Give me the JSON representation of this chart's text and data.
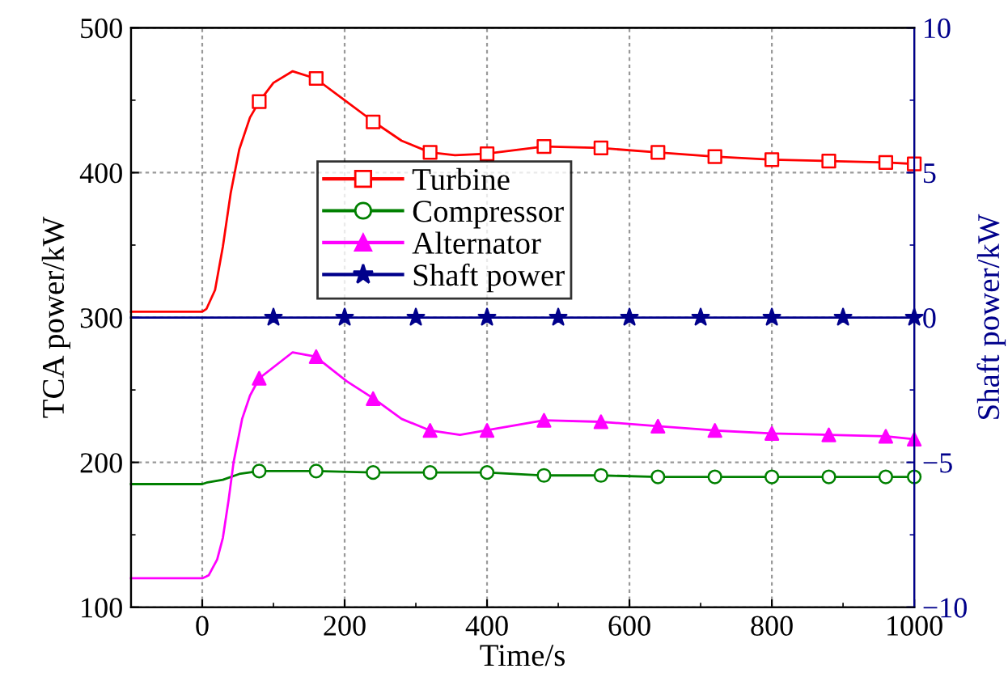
{
  "chart_data": {
    "type": "line",
    "xlabel": "Time/s",
    "ylabel": "TCA power/kW",
    "y2label": "Shaft power/kW",
    "xlim": [
      -100,
      1000
    ],
    "xticks": [
      0,
      {
        "value": 100,
        "label": null
      },
      200,
      {
        "value": 300,
        "label": null
      },
      400,
      {
        "value": 500,
        "label": null
      },
      600,
      {
        "value": 700,
        "label": null
      },
      800,
      {
        "value": 900,
        "label": null
      },
      1000
    ],
    "ylim": [
      100,
      500
    ],
    "yticks": [
      100,
      {
        "value": 150,
        "label": null
      },
      200,
      {
        "value": 250,
        "label": null
      },
      300,
      {
        "value": 350,
        "label": null
      },
      400,
      {
        "value": 450,
        "label": null
      },
      500
    ],
    "y2lim": [
      -10,
      10
    ],
    "y2ticks": [
      {
        "value": -10,
        "label": "−10"
      },
      {
        "value": -7.5,
        "label": null
      },
      {
        "value": -5,
        "label": "−5"
      },
      {
        "value": -2.5,
        "label": null
      },
      0,
      {
        "value": 2.5,
        "label": null
      },
      5,
      {
        "value": 7.5,
        "label": null
      },
      10
    ],
    "grid": true,
    "legend": "top",
    "line_style": "solid",
    "series": [
      {
        "marker": "none",
        "color": "#ff0000",
        "x": [
          -100,
          0,
          6,
          18,
          29,
          40,
          52,
          67,
          80,
          100,
          127,
          159,
          200,
          241,
          280,
          320,
          355,
          398,
          480,
          559,
          639,
          720,
          800,
          880,
          961,
          1000
        ],
        "values": [
          304,
          304,
          306,
          319,
          349,
          386,
          416,
          438,
          449,
          462,
          470,
          465,
          450,
          435,
          422,
          414,
          412,
          413,
          418,
          417,
          414,
          411,
          409,
          408,
          407,
          406
        ]
      },
      {
        "type": "scatter",
        "name": "Turbine",
        "marker": "square",
        "color": "#ff0000",
        "x": [
          80,
          160,
          240,
          320,
          400,
          480,
          560,
          640,
          720,
          800,
          880,
          960,
          1000
        ],
        "values": [
          449,
          465,
          435,
          414,
          413,
          418,
          417,
          414,
          411,
          409,
          408,
          407,
          406
        ]
      },
      {
        "marker": "none",
        "color": "#008000",
        "x": [
          -100,
          0,
          6,
          29,
          52,
          80,
          160,
          240,
          320,
          400,
          480,
          560,
          640,
          720,
          800,
          880,
          960,
          1000
        ],
        "values": [
          185,
          185,
          186,
          188,
          192,
          194,
          194,
          193,
          193,
          193,
          191,
          191,
          190,
          190,
          190,
          190,
          190,
          190
        ]
      },
      {
        "type": "scatter",
        "name": "Compressor",
        "marker": "circle",
        "color": "#008000",
        "x": [
          80,
          160,
          240,
          320,
          400,
          480,
          560,
          640,
          720,
          800,
          880,
          960,
          1000
        ],
        "values": [
          194,
          194,
          193,
          193,
          193,
          191,
          191,
          190,
          190,
          190,
          190,
          190,
          190
        ]
      },
      {
        "marker": "none",
        "color": "#ff00ff",
        "x": [
          -100,
          0,
          9,
          21,
          29,
          37,
          44,
          56,
          67,
          80,
          127,
          159,
          203,
          241,
          280,
          320,
          362,
          398,
          480,
          560,
          640,
          720,
          800,
          880,
          960,
          1000
        ],
        "values": [
          120,
          120,
          122,
          133,
          148,
          174,
          200,
          230,
          246,
          258,
          276,
          273,
          256,
          244,
          230,
          222,
          219,
          222,
          229,
          228,
          225,
          222,
          220,
          219,
          218,
          216
        ]
      },
      {
        "type": "scatter",
        "name": "Alternator",
        "marker": "triangle",
        "color": "#ff00ff",
        "x": [
          80,
          160,
          240,
          320,
          400,
          480,
          560,
          640,
          720,
          800,
          880,
          960,
          1000
        ],
        "values": [
          258,
          273,
          244,
          222,
          222,
          229,
          228,
          225,
          222,
          220,
          219,
          218,
          216
        ]
      },
      {
        "marker": "none",
        "axis": "y2",
        "color": "#00008b",
        "x": [
          -100,
          1000
        ],
        "values": [
          0,
          0
        ]
      },
      {
        "type": "scatter",
        "name": "Shaft power",
        "marker": "star",
        "axis": "y2",
        "color": "#00008b",
        "x": [
          100,
          200,
          300,
          400,
          500,
          600,
          700,
          800,
          900,
          1000
        ],
        "values": [
          0,
          0,
          0,
          0,
          0,
          0,
          0,
          0,
          0,
          0
        ]
      }
    ]
  }
}
